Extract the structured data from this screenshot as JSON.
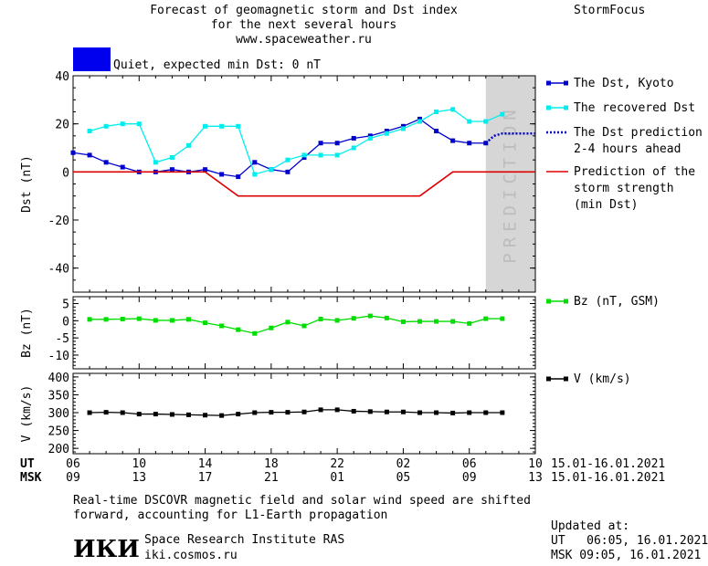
{
  "header": {
    "title_line1": "Forecast of geomagnetic storm and Dst index",
    "title_line2": "for the next several hours",
    "url": "www.spaceweather.ru",
    "brand": "StormFocus",
    "status_label": "Quiet, expected min Dst: 0 nT",
    "status_color": "#0000ee"
  },
  "prediction_label": "PREDICTION",
  "chart_data": [
    {
      "type": "line",
      "ylabel": "Dst (nT)",
      "ylim": [
        -50,
        40
      ],
      "yticks": [
        40,
        20,
        0,
        -20,
        -40
      ],
      "x_range": [
        6,
        34
      ],
      "prediction_window": [
        31,
        34
      ],
      "series": [
        {
          "name": "The Dst, Kyoto",
          "color": "#0000cc",
          "marker": "square",
          "x": [
            6,
            7,
            8,
            9,
            10,
            11,
            12,
            13,
            14,
            15,
            16,
            17,
            18,
            19,
            20,
            21,
            22,
            23,
            24,
            25,
            26,
            27,
            28,
            29,
            30,
            31
          ],
          "y": [
            8,
            7,
            4,
            2,
            0,
            0,
            1,
            0,
            1,
            -1,
            -2,
            4,
            1,
            0,
            6,
            12,
            12,
            14,
            15,
            17,
            19,
            22,
            17,
            13,
            12,
            12
          ]
        },
        {
          "name": "The recovered Dst",
          "color": "#00eeee",
          "marker": "square",
          "x": [
            7,
            8,
            9,
            10,
            11,
            12,
            13,
            14,
            15,
            16,
            17,
            18,
            19,
            20,
            21,
            22,
            23,
            24,
            25,
            26,
            27,
            28,
            29,
            30,
            31,
            32
          ],
          "y": [
            17,
            19,
            20,
            20,
            4,
            6,
            11,
            19,
            19,
            19,
            -1,
            1,
            5,
            7,
            7,
            7,
            10,
            14,
            16,
            18,
            21,
            25,
            26,
            21,
            21,
            24
          ]
        },
        {
          "name": "The Dst prediction 2-4 hours ahead",
          "color": "#0000cc",
          "style": "dotted",
          "x": [
            31,
            31.5,
            32,
            33,
            34
          ],
          "y": [
            12,
            15,
            16,
            16,
            16
          ]
        },
        {
          "name": "Prediction of the storm strength (min Dst)",
          "color": "#dd0000",
          "style": "step",
          "x": [
            6,
            14,
            16,
            27,
            29,
            35
          ],
          "y": [
            0,
            0,
            -10,
            -10,
            0,
            0
          ]
        }
      ],
      "legend": [
        {
          "text": "The Dst, Kyoto",
          "color": "#0000cc",
          "style": "marker"
        },
        {
          "text": "The recovered Dst",
          "color": "#00eeee",
          "style": "marker"
        },
        {
          "text": "The Dst prediction\n2-4 hours ahead",
          "color": "#0000cc",
          "style": "dotted"
        },
        {
          "text": "Prediction of the\nstorm strength\n(min Dst)",
          "color": "#dd0000",
          "style": "line"
        }
      ]
    },
    {
      "type": "line",
      "ylabel": "Bz (nT)",
      "ylim": [
        -14,
        7
      ],
      "yticks": [
        5,
        0,
        -5,
        -10
      ],
      "x_range": [
        6,
        34
      ],
      "series": [
        {
          "name": "Bz (nT, GSM)",
          "color": "#00dd00",
          "marker": "square",
          "x": [
            7,
            8,
            9,
            10,
            11,
            12,
            13,
            14,
            15,
            16,
            17,
            18,
            19,
            20,
            21,
            22,
            23,
            24,
            25,
            26,
            27,
            28,
            29,
            30,
            31,
            32
          ],
          "y": [
            0.4,
            0.4,
            0.5,
            0.6,
            0.1,
            0.1,
            0.4,
            -0.6,
            -1.5,
            -2.6,
            -3.7,
            -2.1,
            -0.4,
            -1.5,
            0.5,
            0.1,
            0.7,
            1.4,
            0.8,
            -0.3,
            -0.2,
            -0.2,
            -0.2,
            -0.8,
            0.6,
            0.6
          ]
        }
      ],
      "legend": [
        {
          "text": "Bz (nT, GSM)",
          "color": "#00dd00",
          "style": "marker"
        }
      ]
    },
    {
      "type": "line",
      "ylabel": "V (km/s)",
      "ylim": [
        185,
        410
      ],
      "yticks": [
        400,
        350,
        300,
        250,
        200
      ],
      "x_range": [
        6,
        34
      ],
      "series": [
        {
          "name": "V (km/s)",
          "color": "#000000",
          "marker": "square",
          "x": [
            7,
            8,
            9,
            10,
            11,
            12,
            13,
            14,
            15,
            16,
            17,
            18,
            19,
            20,
            21,
            22,
            23,
            24,
            25,
            26,
            27,
            28,
            29,
            30,
            31,
            32
          ],
          "y": [
            300,
            301,
            300,
            296,
            296,
            295,
            294,
            293,
            292,
            296,
            300,
            301,
            301,
            302,
            308,
            308,
            304,
            303,
            302,
            302,
            300,
            300,
            299,
            300,
            300,
            300
          ]
        }
      ],
      "legend": [
        {
          "text": "V (km/s)",
          "color": "#000000",
          "style": "marker"
        }
      ]
    }
  ],
  "x_axis": {
    "ut_label": "UT",
    "msk_label": "MSK",
    "ut_ticks": [
      "06",
      "10",
      "14",
      "18",
      "22",
      "02",
      "06",
      "10"
    ],
    "msk_ticks": [
      "09",
      "13",
      "17",
      "21",
      "01",
      "05",
      "09",
      "13"
    ],
    "tick_hours": [
      6,
      10,
      14,
      18,
      22,
      26,
      30,
      34
    ],
    "date_range_ut": "15.01-16.01.2021",
    "date_range_msk": "15.01-16.01.2021"
  },
  "footer": {
    "note_line1": "Real-time DSCOVR magnetic field and solar wind speed are shifted",
    "note_line2": "forward, accounting for L1-Earth propagation",
    "institute_logo": "ИКИ",
    "institute_name": "Space Research Institute RAS",
    "institute_url": "iki.cosmos.ru",
    "updated_label": "Updated at:",
    "updated_ut": "UT   06:05, 16.01.2021",
    "updated_msk": "MSK 09:05, 16.01.2021"
  }
}
